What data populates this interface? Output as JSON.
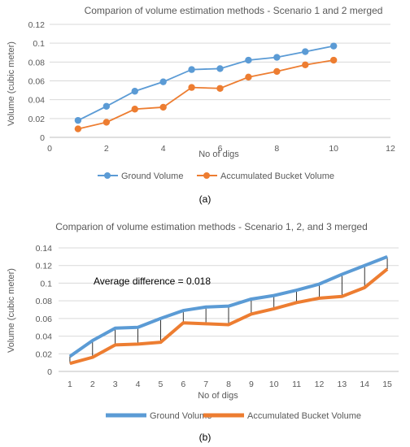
{
  "chart_data": [
    {
      "type": "line",
      "title": "Comparion of volume estimation methods - Scenario 1 and 2 merged",
      "xlabel": "No of digs",
      "ylabel": "Volume (cubic meter)",
      "xlim": [
        0,
        12
      ],
      "ylim": [
        0,
        0.12
      ],
      "xticks": [
        "0",
        "2",
        "4",
        "6",
        "8",
        "10",
        "12"
      ],
      "yticks": [
        "0",
        "0.02",
        "0.04",
        "0.06",
        "0.08",
        "0.1",
        "0.12"
      ],
      "x": [
        1,
        2,
        3,
        4,
        5,
        6,
        7,
        8,
        9,
        10
      ],
      "grid": true,
      "legend": "bottom",
      "series": [
        {
          "name": "Ground Volume",
          "color": "#5B9BD5",
          "values": [
            0.018,
            0.033,
            0.049,
            0.059,
            0.072,
            0.073,
            0.082,
            0.085,
            0.091,
            0.097
          ]
        },
        {
          "name": "Accumulated Bucket Volume",
          "color": "#ED7D31",
          "values": [
            0.009,
            0.016,
            0.03,
            0.032,
            0.053,
            0.052,
            0.064,
            0.07,
            0.077,
            0.082
          ]
        }
      ],
      "caption": "(a)"
    },
    {
      "type": "line",
      "title": "Comparion of volume estimation methods - Scenario 1, 2, and 3 merged",
      "xlabel": "No of digs",
      "ylabel": "Volume (cubic meter)",
      "ylim": [
        0,
        0.14
      ],
      "yticks": [
        "0",
        "0.02",
        "0.04",
        "0.06",
        "0.08",
        "0.1",
        "0.12",
        "0.14"
      ],
      "categories": [
        "1",
        "2",
        "3",
        "4",
        "5",
        "6",
        "7",
        "8",
        "9",
        "10",
        "11",
        "12",
        "13",
        "14",
        "15"
      ],
      "grid": true,
      "legend": "bottom",
      "annotation": "Average difference = 0.018",
      "series": [
        {
          "name": "Ground Volume",
          "color": "#5B9BD5",
          "values": [
            0.017,
            0.035,
            0.049,
            0.05,
            0.06,
            0.069,
            0.073,
            0.074,
            0.082,
            0.086,
            0.092,
            0.099,
            0.11,
            0.12,
            0.13
          ]
        },
        {
          "name": "Accumulated Bucket Volume",
          "color": "#ED7D31",
          "values": [
            0.009,
            0.016,
            0.03,
            0.031,
            0.033,
            0.055,
            0.054,
            0.053,
            0.065,
            0.071,
            0.078,
            0.083,
            0.085,
            0.095,
            0.116
          ]
        }
      ],
      "caption": "(b)"
    }
  ]
}
